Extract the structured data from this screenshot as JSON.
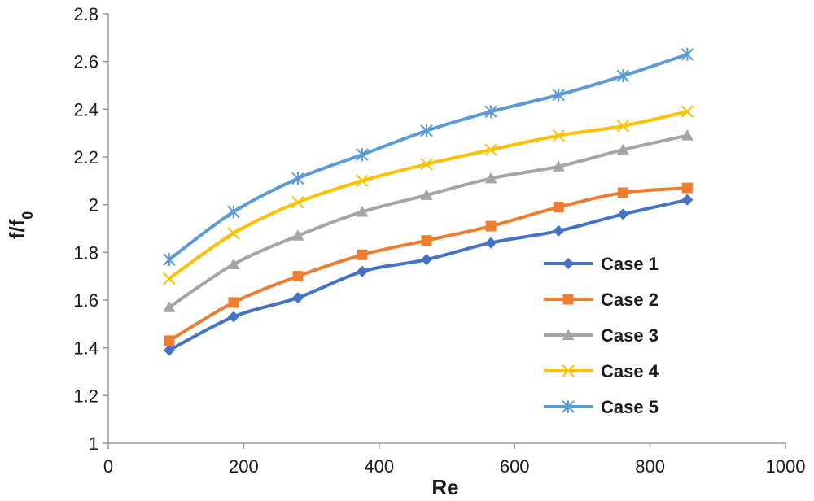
{
  "chart_data": {
    "type": "line",
    "title": "",
    "xlabel": "Re",
    "ylabel": "f/f",
    "ylabel_subscript": "0",
    "xlim": [
      0,
      1000
    ],
    "ylim": [
      1,
      2.8
    ],
    "x_ticks": [
      0,
      200,
      400,
      600,
      800,
      1000
    ],
    "y_ticks": [
      1,
      1.2,
      1.4,
      1.6,
      1.8,
      2,
      2.2,
      2.4,
      2.6,
      2.8
    ],
    "x_tick_labels": [
      "0",
      "200",
      "400",
      "600",
      "800",
      "1000"
    ],
    "y_tick_labels": [
      "1",
      "1.2",
      "1.4",
      "1.6",
      "1.8",
      "2",
      "2.2",
      "2.4",
      "2.6",
      "2.8"
    ],
    "grid": false,
    "legend_position": "bottom-right",
    "x": [
      90,
      185,
      280,
      375,
      470,
      565,
      665,
      760,
      855
    ],
    "series": [
      {
        "name": "Case 1",
        "color": "#4472C4",
        "marker": "diamond",
        "values": [
          1.39,
          1.53,
          1.61,
          1.72,
          1.77,
          1.84,
          1.89,
          1.96,
          2.02
        ]
      },
      {
        "name": "Case 2",
        "color": "#ED7D31",
        "marker": "square",
        "values": [
          1.43,
          1.59,
          1.7,
          1.79,
          1.85,
          1.91,
          1.99,
          2.05,
          2.07
        ]
      },
      {
        "name": "Case 3",
        "color": "#A5A5A5",
        "marker": "triangle",
        "values": [
          1.57,
          1.75,
          1.87,
          1.97,
          2.04,
          2.11,
          2.16,
          2.23,
          2.29
        ]
      },
      {
        "name": "Case 4",
        "color": "#FFC000",
        "marker": "x",
        "values": [
          1.69,
          1.88,
          2.01,
          2.1,
          2.17,
          2.23,
          2.29,
          2.33,
          2.39
        ]
      },
      {
        "name": "Case 5",
        "color": "#5B9BD5",
        "marker": "star",
        "values": [
          1.77,
          1.97,
          2.11,
          2.21,
          2.31,
          2.39,
          2.46,
          2.54,
          2.63
        ]
      }
    ]
  }
}
